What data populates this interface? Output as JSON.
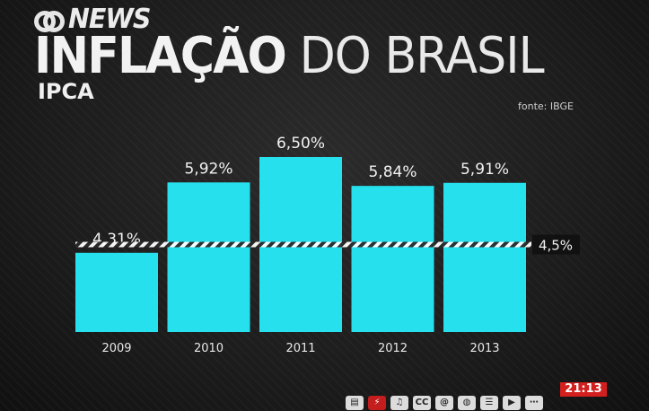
{
  "header": {
    "logo_text": "NEWS",
    "title_bold": "INFLAÇÃO",
    "title_light": " DO BRASIL",
    "subtitle": "IPCA",
    "source": "fonte: IBGE"
  },
  "colors": {
    "bar": "#27e0ee",
    "background": "#1e1e1e",
    "clock_bg": "#d41f1f"
  },
  "chart_data": {
    "type": "bar",
    "title": "INFLAÇÃO DO BRASIL",
    "subtitle": "IPCA",
    "categories": [
      "2009",
      "2010",
      "2011",
      "2012",
      "2013"
    ],
    "values": [
      4.31,
      5.92,
      6.5,
      5.84,
      5.91
    ],
    "value_labels": [
      "4,31%",
      "5,92%",
      "6,50%",
      "5,84%",
      "5,91%"
    ],
    "reference_line": {
      "value": 4.5,
      "label": "4,5%"
    },
    "ylim": [
      2.5,
      7.0
    ],
    "grid": false,
    "legend": "none"
  },
  "toolbar": {
    "clock": "21:13",
    "icons": [
      "newspaper-icon",
      "weather-icon",
      "sound-icon",
      "cc-icon",
      "at-icon",
      "globe-icon",
      "list-icon",
      "play-icon",
      "more-icon"
    ]
  }
}
